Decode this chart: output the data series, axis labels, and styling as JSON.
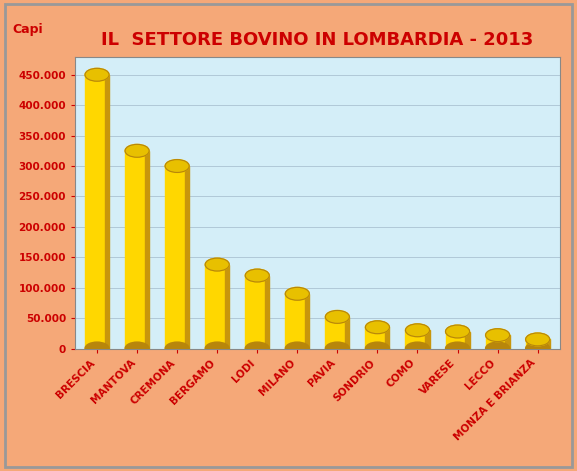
{
  "title": "IL  SETTORE BOVINO IN LOMBARDIA - 2013",
  "capi_label": "Capi",
  "categories": [
    "BRESCIA",
    "MANTOVA",
    "CREMONA",
    "BERGAMO",
    "LODI",
    "MILANO",
    "PAVIA",
    "SONDRIO",
    "COMO",
    "VARESE",
    "LECCO",
    "MONZA E BRIANZA"
  ],
  "values": [
    450000,
    325000,
    300000,
    138000,
    120000,
    90000,
    52000,
    35000,
    30000,
    28000,
    22000,
    15000
  ],
  "bar_color_body": "#FFD700",
  "bar_color_right": "#C8960C",
  "bar_color_top": "#E8C000",
  "bar_color_top_dark": "#B8860B",
  "title_color": "#CC0000",
  "label_color": "#CC0000",
  "tick_color": "#CC0000",
  "background_outer": "#FADADC",
  "background_outer2": "#F5A878",
  "background_inner": "#D4EEF8",
  "ylim": [
    0,
    480000
  ],
  "yticks": [
    0,
    50000,
    100000,
    150000,
    200000,
    250000,
    300000,
    350000,
    400000,
    450000
  ],
  "grid_color": "#B0C8D8",
  "title_fontsize": 13,
  "label_fontsize": 7.5,
  "tick_fontsize": 7.5
}
